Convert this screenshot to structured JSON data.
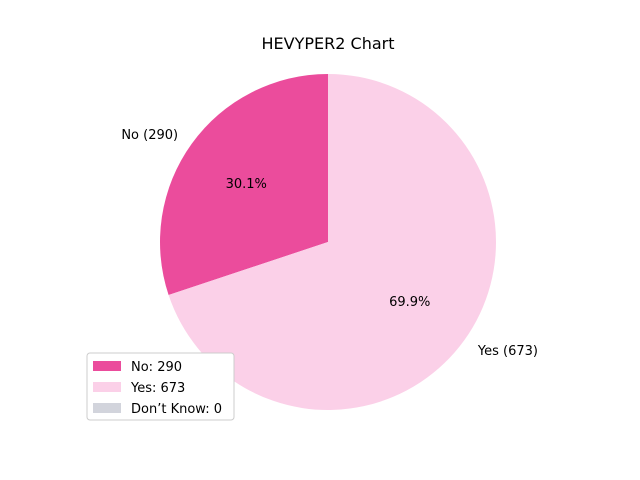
{
  "chart_data": {
    "type": "pie",
    "title": "HEVYPER2 Chart",
    "slices": [
      {
        "label": "No",
        "value": 290,
        "percent_label": "30.1%",
        "outer_label": "No (290)",
        "legend_label": "No: 290",
        "color": "#eb4c9c"
      },
      {
        "label": "Yes",
        "value": 673,
        "percent_label": "69.9%",
        "outer_label": "Yes (673)",
        "legend_label": "Yes: 673",
        "color": "#fbd0e8"
      },
      {
        "label": "Don’t Know",
        "value": 0,
        "percent_label": "",
        "outer_label": "",
        "legend_label": "Don’t Know: 0",
        "color": "#d2d4dc"
      }
    ],
    "start_angle_deg": 90,
    "direction": "counterclockwise",
    "legend_position": "lower-left"
  }
}
